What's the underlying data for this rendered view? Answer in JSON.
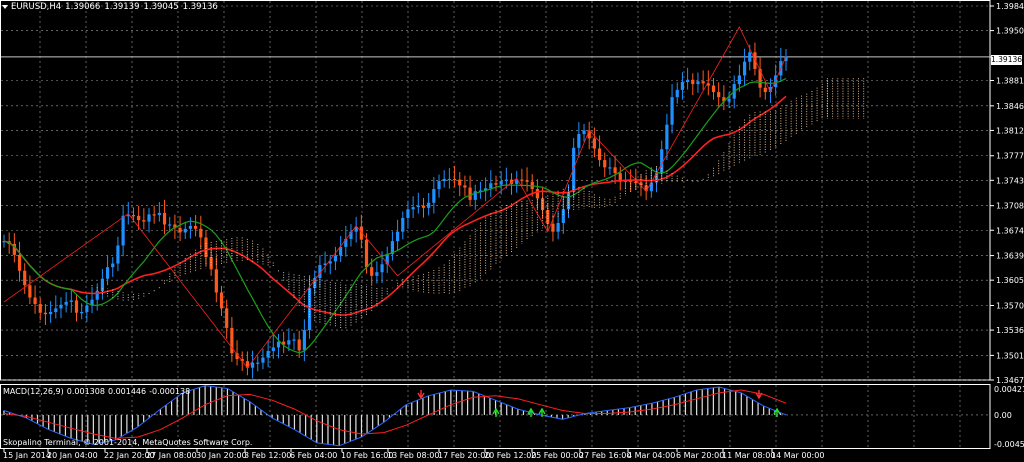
{
  "header": {
    "symbol": "EURUSD,H4",
    "open": "1.39066",
    "high": "1.39139",
    "low": "1.39045",
    "close": "1.39136"
  },
  "current_price": "1.39136",
  "macd_header": {
    "name": "MACD(12,26,9)",
    "main": "0.001308",
    "signal": "0.001446",
    "histogram": "-0.000138"
  },
  "copyright": "Skopalino Terminal, © 2001-2014, MetaQuotes Software Corp.",
  "colors": {
    "background": "#000000",
    "grid": "#a0a0a0",
    "bull_candle": "#1e90ff",
    "bear_candle": "#ff5a1e",
    "ma_red": "#ff2020",
    "ma_green": "#1aa01a",
    "cloud_bull": "#ffd2a0",
    "cloud_bear": "#e0e0e0",
    "macd_main": "#2a66ff",
    "macd_signal": "#ff2020",
    "macd_hist": "#e0e0e0",
    "arrow": "#22e022",
    "arrow_red": "#ff3030"
  },
  "chart_data": [
    {
      "type": "candlestick",
      "title": "EURUSD,H4",
      "xlabel": "",
      "ylabel": "",
      "ylim": [
        1.3467,
        1.3984
      ],
      "y_ticks": [
        "1.39840",
        "1.39500",
        "1.39136",
        "1.38810",
        "1.38460",
        "1.38120",
        "1.37770",
        "1.37430",
        "1.37080",
        "1.36740",
        "1.36390",
        "1.36050",
        "1.35700",
        "1.35360",
        "1.35010",
        "1.34670"
      ],
      "x_ticks": [
        "15 Jan 2014",
        "20 Jan 04:00",
        "22 Jan 20:00",
        "27 Jan 08:00",
        "30 Jan 20:00",
        "3 Feb 12:00",
        "6 Feb 04:00",
        "10 Feb 16:00",
        "13 Feb 08:00",
        "17 Feb 20:00",
        "20 Feb 12:00",
        "25 Feb 00:00",
        "27 Feb 16:00",
        "4 Mar 04:00",
        "6 Mar 20:00",
        "11 Mar 08:00",
        "14 Mar 00:00"
      ],
      "grid": true,
      "closes": [
        1.3659,
        1.3655,
        1.364,
        1.3618,
        1.3598,
        1.3581,
        1.3572,
        1.356,
        1.3558,
        1.3561,
        1.3566,
        1.3571,
        1.3575,
        1.3577,
        1.356,
        1.3561,
        1.357,
        1.3578,
        1.359,
        1.3607,
        1.3623,
        1.3628,
        1.3653,
        1.3694,
        1.3695,
        1.3694,
        1.3688,
        1.3686,
        1.3696,
        1.3695,
        1.3698,
        1.3682,
        1.3682,
        1.3677,
        1.3671,
        1.3676,
        1.368,
        1.3676,
        1.3664,
        1.3637,
        1.362,
        1.3588,
        1.3566,
        1.3539,
        1.3504,
        1.3496,
        1.3493,
        1.3484,
        1.3491,
        1.3491,
        1.3498,
        1.3507,
        1.3512,
        1.352,
        1.3516,
        1.3522,
        1.3523,
        1.3508,
        1.3536,
        1.3594,
        1.3608,
        1.3626,
        1.3628,
        1.3631,
        1.3639,
        1.3651,
        1.3662,
        1.3672,
        1.3679,
        1.3661,
        1.3623,
        1.3611,
        1.3616,
        1.3627,
        1.3641,
        1.3659,
        1.3672,
        1.3691,
        1.3703,
        1.3706,
        1.3708,
        1.3705,
        1.3712,
        1.3731,
        1.3742,
        1.3745,
        1.3745,
        1.3744,
        1.3736,
        1.3733,
        1.3716,
        1.3728,
        1.3729,
        1.3732,
        1.3739,
        1.3737,
        1.3742,
        1.3744,
        1.3738,
        1.3744,
        1.3743,
        1.3741,
        1.3731,
        1.3718,
        1.3702,
        1.3683,
        1.3672,
        1.3684,
        1.3703,
        1.3727,
        1.3788,
        1.3807,
        1.3812,
        1.3801,
        1.3787,
        1.3771,
        1.3761,
        1.3761,
        1.3753,
        1.3741,
        1.3743,
        1.3741,
        1.374,
        1.3736,
        1.3728,
        1.374,
        1.3753,
        1.3786,
        1.382,
        1.3858,
        1.3868,
        1.3879,
        1.3882,
        1.3876,
        1.388,
        1.3877,
        1.3874,
        1.3865,
        1.3858,
        1.3852,
        1.3856,
        1.3876,
        1.3888,
        1.3907,
        1.392,
        1.3897,
        1.3871,
        1.3865,
        1.3872,
        1.3888,
        1.3908,
        1.3914
      ]
    },
    {
      "type": "line",
      "title": "MACD(12,26,9)",
      "series": [
        {
          "name": "MACD",
          "values": [
            0.0006,
            -0.0004,
            -0.002,
            -0.0032,
            -0.004,
            -0.0034,
            -0.0016,
            0.0008,
            0.003,
            0.004,
            0.0036,
            0.0018,
            -0.0004,
            -0.002,
            -0.0038,
            -0.0042,
            -0.003,
            -0.001,
            0.0014,
            0.0026,
            0.0034,
            0.0032,
            0.002,
            0.0008,
            0.0,
            -0.0006,
            0.0002,
            0.0006,
            0.001,
            0.0016,
            0.0024,
            0.0034,
            0.0038,
            0.003,
            0.0012,
            0.0
          ]
        },
        {
          "name": "Signal",
          "values": [
            0.0002,
            -0.0002,
            -0.001,
            -0.0018,
            -0.0026,
            -0.0032,
            -0.003,
            -0.002,
            -0.0004,
            0.0014,
            0.0026,
            0.0028,
            0.002,
            0.0008,
            -0.0008,
            -0.002,
            -0.0026,
            -0.0024,
            -0.0014,
            0.0,
            0.0014,
            0.0024,
            0.0026,
            0.0022,
            0.0014,
            0.0006,
            0.0002,
            0.0002,
            0.0004,
            0.0008,
            0.0014,
            0.0022,
            0.003,
            0.0034,
            0.0028,
            0.0016
          ]
        }
      ],
      "ylim": [
        -0.0045,
        0.004212
      ],
      "y_ticks": [
        "0.004212",
        "0.00",
        "-0.004500"
      ]
    }
  ]
}
